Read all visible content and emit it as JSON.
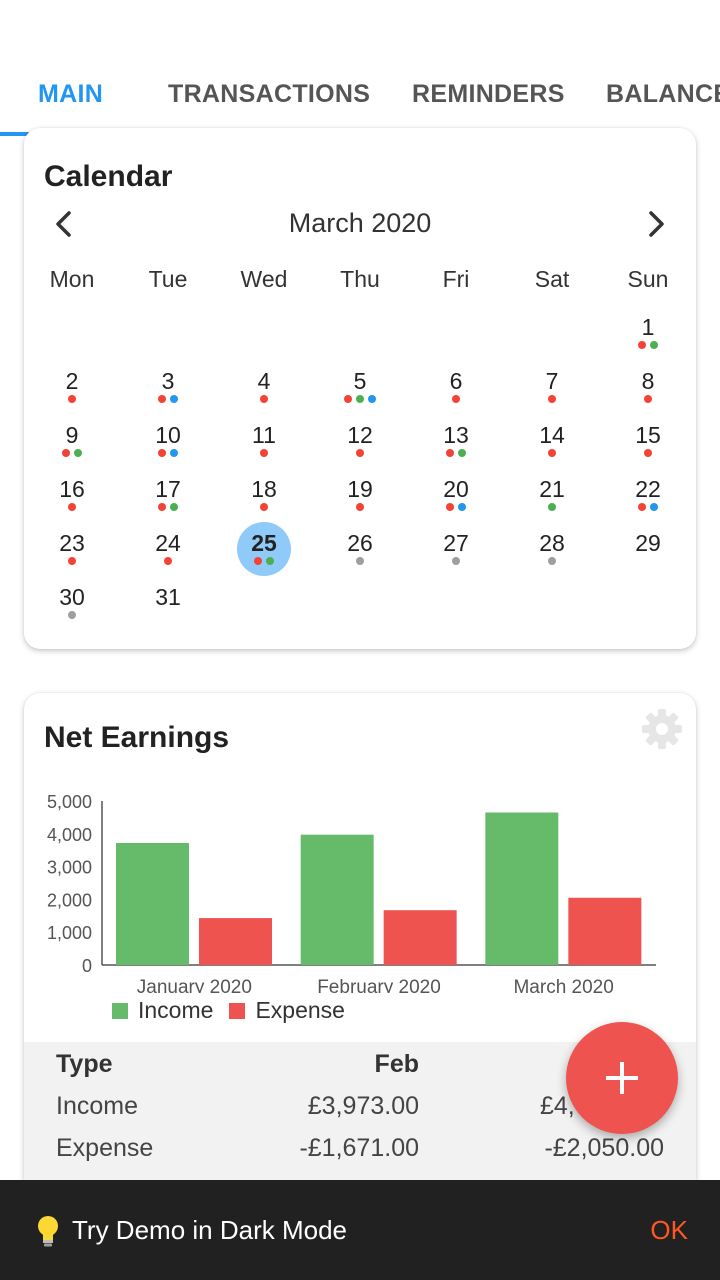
{
  "tabs": [
    {
      "label": "MAIN",
      "active": true
    },
    {
      "label": "TRANSACTIONS",
      "active": false
    },
    {
      "label": "REMINDERS",
      "active": false
    },
    {
      "label": "BALANCE",
      "active": false
    }
  ],
  "calendar": {
    "title": "Calendar",
    "month": "March 2020",
    "weekdays": [
      "Mon",
      "Tue",
      "Wed",
      "Thu",
      "Fri",
      "Sat",
      "Sun"
    ],
    "first_weekday_index": 6,
    "selected_day": 25,
    "dot_colors": {
      "red": "#F44336",
      "green": "#4CAF50",
      "blue": "#2196F3",
      "gray": "#9E9E9E"
    },
    "days": [
      {
        "day": "1",
        "dots": [
          "red",
          "green"
        ]
      },
      {
        "day": "2",
        "dots": [
          "red"
        ]
      },
      {
        "day": "3",
        "dots": [
          "red",
          "blue"
        ]
      },
      {
        "day": "4",
        "dots": [
          "red"
        ]
      },
      {
        "day": "5",
        "dots": [
          "red",
          "green",
          "blue"
        ]
      },
      {
        "day": "6",
        "dots": [
          "red"
        ]
      },
      {
        "day": "7",
        "dots": [
          "red"
        ]
      },
      {
        "day": "8",
        "dots": [
          "red"
        ]
      },
      {
        "day": "9",
        "dots": [
          "red",
          "green"
        ]
      },
      {
        "day": "10",
        "dots": [
          "red",
          "blue"
        ]
      },
      {
        "day": "11",
        "dots": [
          "red"
        ]
      },
      {
        "day": "12",
        "dots": [
          "red"
        ]
      },
      {
        "day": "13",
        "dots": [
          "red",
          "green"
        ]
      },
      {
        "day": "14",
        "dots": [
          "red"
        ]
      },
      {
        "day": "15",
        "dots": [
          "red"
        ]
      },
      {
        "day": "16",
        "dots": [
          "red"
        ]
      },
      {
        "day": "17",
        "dots": [
          "red",
          "green"
        ]
      },
      {
        "day": "18",
        "dots": [
          "red"
        ]
      },
      {
        "day": "19",
        "dots": [
          "red"
        ]
      },
      {
        "day": "20",
        "dots": [
          "red",
          "blue"
        ]
      },
      {
        "day": "21",
        "dots": [
          "green"
        ]
      },
      {
        "day": "22",
        "dots": [
          "red",
          "blue"
        ]
      },
      {
        "day": "23",
        "dots": [
          "red"
        ]
      },
      {
        "day": "24",
        "dots": [
          "red"
        ]
      },
      {
        "day": "25",
        "dots": [
          "red",
          "green"
        ]
      },
      {
        "day": "26",
        "dots": [
          "gray"
        ]
      },
      {
        "day": "27",
        "dots": [
          "gray"
        ]
      },
      {
        "day": "28",
        "dots": [
          "gray"
        ]
      },
      {
        "day": "29",
        "dots": []
      },
      {
        "day": "30",
        "dots": [
          "gray"
        ]
      },
      {
        "day": "31",
        "dots": []
      }
    ]
  },
  "net_earnings": {
    "title": "Net Earnings",
    "settings_icon": "gear-icon",
    "chart_data": {
      "type": "bar",
      "categories": [
        "January 2020",
        "February 2020",
        "March 2020"
      ],
      "series": [
        {
          "name": "Income",
          "values": [
            3720,
            3973,
            4650
          ],
          "color": "#66BB6A"
        },
        {
          "name": "Expense",
          "values": [
            1430,
            1671,
            2050
          ],
          "color": "#EF5350"
        }
      ],
      "yticks": [
        "0",
        "1,000",
        "2,000",
        "3,000",
        "4,000",
        "5,000"
      ],
      "ylim": [
        0,
        5000
      ],
      "grid": false,
      "legend": "bottom-left"
    },
    "table": {
      "headers": [
        "Type",
        "Feb",
        ""
      ],
      "rows": [
        {
          "type": "Income",
          "feb": "£3,973.00",
          "mar": "£4,"
        },
        {
          "type": "Expense",
          "feb": "-£1,671.00",
          "mar": "-£2,050.00"
        }
      ]
    }
  },
  "fab": {
    "icon": "plus-icon",
    "color": "#EF5350"
  },
  "snackbar": {
    "icon": "lightbulb-icon",
    "text": "Try Demo in Dark Mode",
    "action": "OK"
  }
}
